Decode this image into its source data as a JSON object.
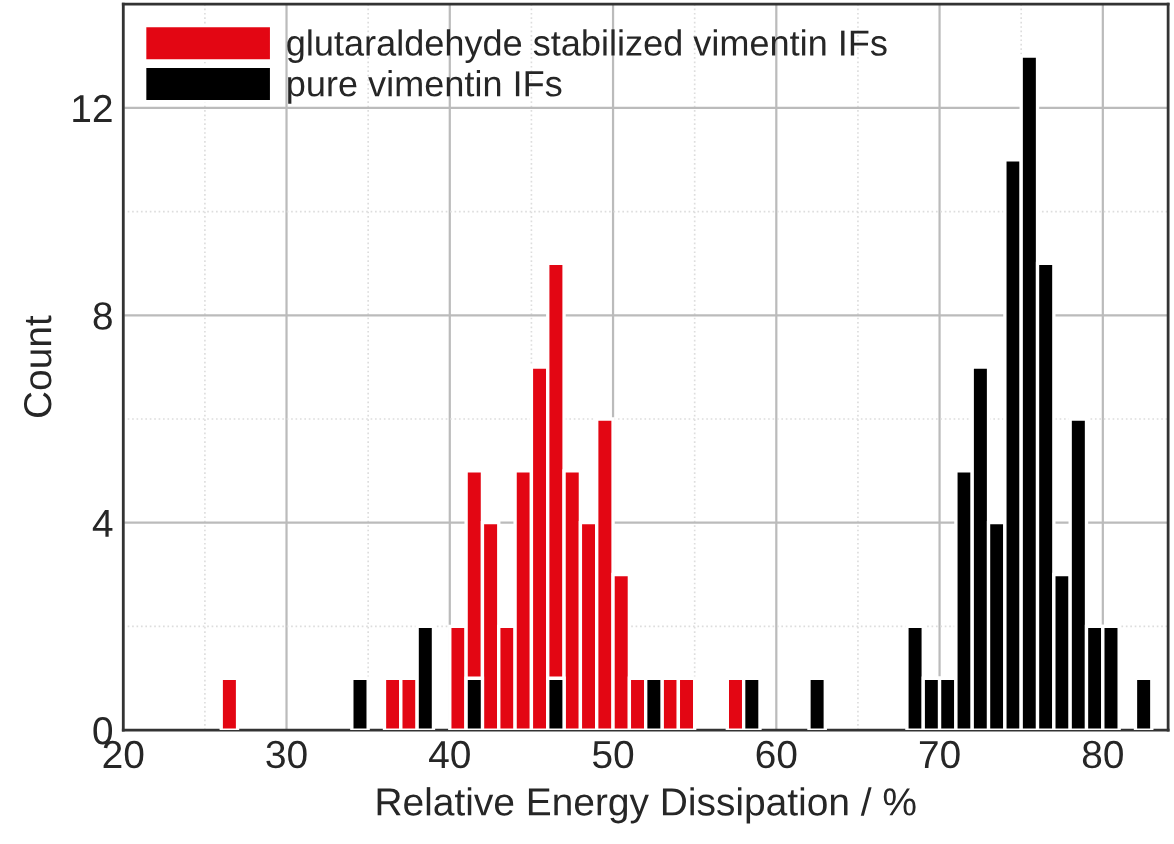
{
  "chart_data": {
    "type": "histogram",
    "xlabel": "Relative Energy Dissipation / %",
    "ylabel": "Count",
    "bins": [
      26,
      27,
      28,
      29,
      30,
      31,
      32,
      33,
      34,
      35,
      36,
      37,
      38,
      39,
      40,
      41,
      42,
      43,
      44,
      45,
      46,
      47,
      48,
      49,
      50,
      51,
      52,
      53,
      54,
      55,
      56,
      57,
      58,
      59,
      60,
      61,
      62,
      63,
      64,
      65,
      66,
      67,
      68,
      69,
      70,
      71,
      72,
      73,
      74,
      75,
      76,
      77,
      78,
      79,
      80,
      81,
      82,
      83
    ],
    "series": [
      {
        "name": "glutaraldehyde stabilized vimentin IFs",
        "color": "#e30613",
        "values": [
          1,
          0,
          0,
          0,
          0,
          0,
          0,
          0,
          0,
          0,
          1,
          1,
          0,
          0,
          2,
          5,
          4,
          2,
          5,
          7,
          9,
          5,
          4,
          6,
          3,
          1,
          0,
          1,
          1,
          0,
          0,
          1,
          0,
          0,
          0,
          0,
          0,
          0,
          0,
          0,
          0,
          0,
          0,
          0,
          0,
          0,
          0,
          0,
          0,
          0,
          0,
          0,
          0,
          0,
          0,
          0,
          0
        ]
      },
      {
        "name": "pure vimentin IFs",
        "color": "#000000",
        "values": [
          0,
          0,
          0,
          0,
          0,
          0,
          0,
          0,
          1,
          0,
          0,
          0,
          2,
          0,
          0,
          1,
          0,
          0,
          0,
          0,
          1,
          0,
          0,
          0,
          0,
          0,
          1,
          0,
          0,
          0,
          0,
          0,
          1,
          0,
          0,
          0,
          1,
          0,
          0,
          0,
          0,
          0,
          2,
          1,
          1,
          5,
          7,
          4,
          11,
          13,
          9,
          3,
          6,
          2,
          2,
          0,
          1
        ]
      }
    ],
    "xlim": [
      20,
      84
    ],
    "ylim": [
      0,
      14
    ],
    "xticks": [
      20,
      30,
      40,
      50,
      60,
      70,
      80
    ],
    "yticks": [
      0,
      4,
      8,
      12
    ],
    "grid": true,
    "legend": "top left"
  }
}
